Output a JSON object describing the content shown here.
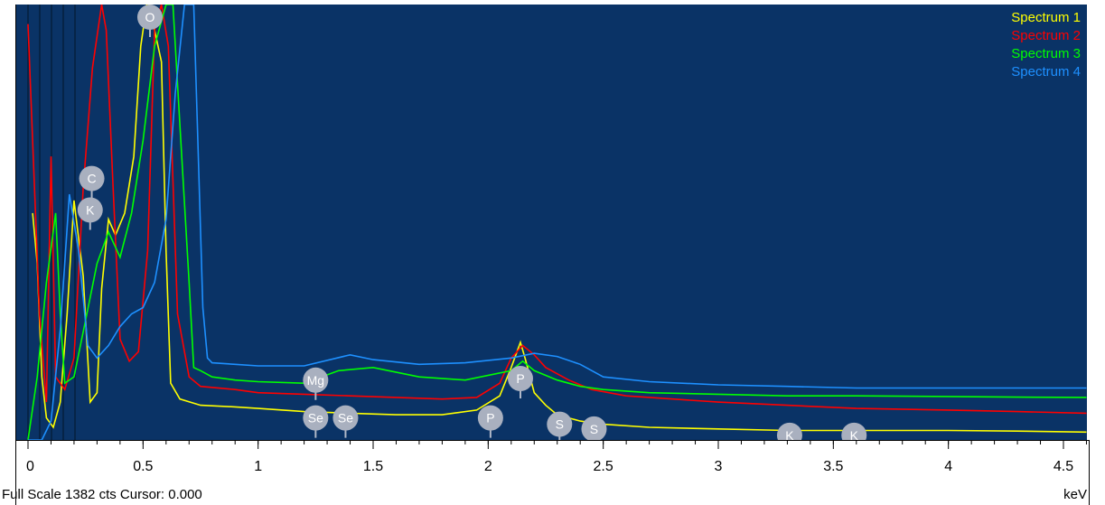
{
  "chart_data": {
    "type": "line",
    "title": "",
    "xlabel": "keV",
    "ylabel": "",
    "xlim": [
      0,
      4.6
    ],
    "ylim": [
      0,
      1382
    ],
    "x_ticks": [
      0,
      0.5,
      1,
      1.5,
      2,
      2.5,
      3,
      3.5,
      4,
      4.5
    ],
    "x_tick_labels": [
      "0",
      "0.5",
      "1",
      "1.5",
      "2",
      "2.5",
      "3",
      "3.5",
      "4",
      "4.5"
    ],
    "grid": false,
    "legend_position": "top-right",
    "colors": {
      "background": "#0a3366",
      "axis_area": "#ffffff"
    },
    "series": [
      {
        "name": "Spectrum 1",
        "color": "#ffff00",
        "x": [
          0.02,
          0.04,
          0.06,
          0.08,
          0.11,
          0.14,
          0.17,
          0.2,
          0.24,
          0.27,
          0.3,
          0.32,
          0.35,
          0.38,
          0.42,
          0.46,
          0.49,
          0.52,
          0.55,
          0.58,
          0.6,
          0.62,
          0.66,
          0.75,
          0.9,
          1.0,
          1.2,
          1.4,
          1.6,
          1.8,
          1.95,
          2.05,
          2.1,
          2.14,
          2.16,
          2.2,
          2.25,
          2.3,
          2.4,
          2.5,
          2.7,
          3.0,
          3.3,
          3.6,
          4.0,
          4.3,
          4.6
        ],
        "y": [
          720,
          560,
          200,
          70,
          40,
          120,
          400,
          760,
          520,
          120,
          150,
          480,
          700,
          650,
          720,
          900,
          1250,
          1400,
          1300,
          1200,
          600,
          180,
          130,
          110,
          105,
          100,
          90,
          85,
          80,
          80,
          95,
          140,
          230,
          310,
          260,
          150,
          110,
          80,
          60,
          50,
          40,
          35,
          30,
          30,
          30,
          28,
          25
        ]
      },
      {
        "name": "Spectrum 2",
        "color": "#ff0000",
        "x": [
          0.0,
          0.05,
          0.08,
          0.1,
          0.12,
          0.16,
          0.2,
          0.24,
          0.28,
          0.32,
          0.34,
          0.37,
          0.4,
          0.44,
          0.48,
          0.52,
          0.55,
          0.58,
          0.61,
          0.65,
          0.7,
          0.75,
          0.9,
          1.0,
          1.2,
          1.4,
          1.6,
          1.8,
          1.95,
          2.05,
          2.1,
          2.15,
          2.2,
          2.25,
          2.35,
          2.45,
          2.6,
          3.0,
          3.3,
          3.6,
          4.0,
          4.3,
          4.6
        ],
        "y": [
          1320,
          400,
          120,
          900,
          200,
          160,
          260,
          800,
          1180,
          1382,
          1300,
          800,
          320,
          250,
          280,
          600,
          1300,
          1382,
          1250,
          400,
          200,
          170,
          160,
          150,
          145,
          140,
          135,
          130,
          135,
          180,
          260,
          300,
          270,
          230,
          190,
          160,
          140,
          120,
          110,
          100,
          95,
          90,
          85
        ]
      },
      {
        "name": "Spectrum 3",
        "color": "#00ff00",
        "x": [
          0.0,
          0.04,
          0.08,
          0.12,
          0.14,
          0.16,
          0.2,
          0.25,
          0.3,
          0.35,
          0.4,
          0.45,
          0.5,
          0.55,
          0.6,
          0.63,
          0.66,
          0.7,
          0.72,
          0.75,
          0.8,
          0.9,
          1.0,
          1.2,
          1.35,
          1.5,
          1.7,
          1.9,
          2.1,
          2.15,
          2.2,
          2.3,
          2.4,
          2.5,
          2.7,
          3.0,
          3.3,
          3.6,
          4.0,
          4.3,
          4.6
        ],
        "y": [
          0,
          200,
          500,
          720,
          400,
          180,
          200,
          380,
          560,
          660,
          580,
          720,
          950,
          1250,
          1382,
          1382,
          1000,
          500,
          230,
          220,
          200,
          190,
          185,
          180,
          220,
          230,
          200,
          190,
          220,
          250,
          220,
          190,
          170,
          160,
          150,
          145,
          140,
          140,
          138,
          136,
          135
        ]
      },
      {
        "name": "Spectrum 4",
        "color": "#1e90ff",
        "x": [
          0.0,
          0.06,
          0.1,
          0.14,
          0.18,
          0.22,
          0.26,
          0.3,
          0.35,
          0.4,
          0.45,
          0.5,
          0.55,
          0.6,
          0.64,
          0.68,
          0.72,
          0.74,
          0.76,
          0.78,
          0.8,
          0.9,
          1.0,
          1.2,
          1.4,
          1.5,
          1.7,
          1.9,
          2.1,
          2.2,
          2.3,
          2.4,
          2.5,
          2.7,
          3.0,
          3.3,
          3.6,
          4.0,
          4.3,
          4.6
        ],
        "y": [
          0,
          0,
          60,
          350,
          780,
          600,
          300,
          260,
          300,
          360,
          400,
          420,
          500,
          700,
          1100,
          1382,
          1382,
          900,
          420,
          260,
          245,
          240,
          235,
          235,
          270,
          255,
          240,
          245,
          260,
          275,
          265,
          240,
          200,
          185,
          175,
          170,
          165,
          165,
          165,
          165
        ]
      }
    ],
    "peak_labels": [
      {
        "label": "O",
        "x": 0.53,
        "y": 1382
      },
      {
        "label": "C",
        "x": 0.277,
        "y": 870
      },
      {
        "label": "K",
        "x": 0.27,
        "y": 770
      },
      {
        "label": "Mg",
        "x": 1.25,
        "y": 230
      },
      {
        "label": "Se",
        "x": 1.25,
        "y": 110
      },
      {
        "label": "Se",
        "x": 1.38,
        "y": 110
      },
      {
        "label": "P",
        "x": 2.01,
        "y": 110
      },
      {
        "label": "P",
        "x": 2.14,
        "y": 235
      },
      {
        "label": "S",
        "x": 2.31,
        "y": 90
      },
      {
        "label": "S",
        "x": 2.46,
        "y": 75
      },
      {
        "label": "K",
        "x": 3.31,
        "y": 55
      },
      {
        "label": "K",
        "x": 3.59,
        "y": 55
      }
    ]
  },
  "status": {
    "left_text": "Full Scale 1382 cts Cursor: 0.000",
    "right_text": "keV"
  }
}
